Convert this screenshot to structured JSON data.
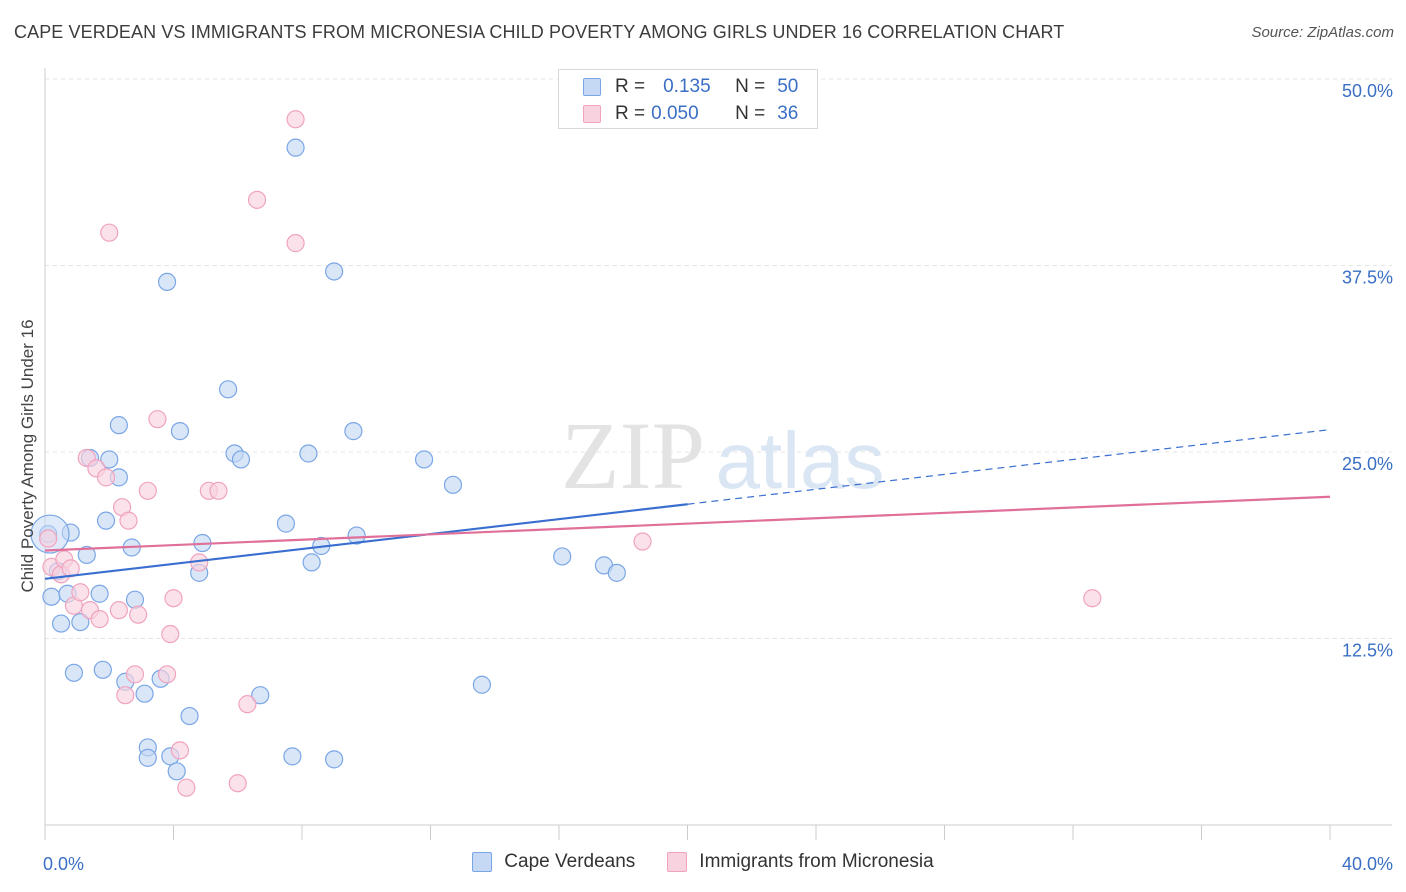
{
  "title": "CAPE VERDEAN VS IMMIGRANTS FROM MICRONESIA CHILD POVERTY AMONG GIRLS UNDER 16 CORRELATION CHART",
  "source": "Source: ZipAtlas.com",
  "watermark": {
    "zip": "ZIP",
    "atlas": "atlas"
  },
  "legend": {
    "rows": [
      {
        "r_label": "R =",
        "r_value": "0.135",
        "n_label": "N =",
        "n_value": "50"
      },
      {
        "r_label": "R =",
        "r_value": "0.050",
        "n_label": "N =",
        "n_value": "36"
      }
    ]
  },
  "chart_data": {
    "type": "scatter",
    "ylabel": "Child Poverty Among Girls Under 16",
    "xlim": [
      0,
      40
    ],
    "ylim": [
      0,
      50
    ],
    "x_tick_labels": [
      {
        "x": 0,
        "label": "0.0%"
      },
      {
        "x": 40,
        "label": "40.0%"
      }
    ],
    "y_tick_labels": [
      {
        "y": 12.5,
        "label": "12.5%"
      },
      {
        "y": 25,
        "label": "25.0%"
      },
      {
        "y": 37.5,
        "label": "37.5%"
      },
      {
        "y": 50,
        "label": "50.0%"
      }
    ],
    "x_minor_ticks": [
      0,
      4,
      8,
      12,
      16,
      20,
      24,
      28,
      32,
      36,
      40
    ],
    "grid": true,
    "legend_position": "top-center",
    "series": [
      {
        "name": "Cape Verdeans",
        "color": "#7aa6e6",
        "fill": "#c5d9f5",
        "trend": {
          "x": [
            0,
            20,
            40
          ],
          "y": [
            16.5,
            21.5,
            26.5
          ],
          "solid_until": 20
        },
        "points": [
          [
            0.1,
            19.5
          ],
          [
            0.2,
            15.3
          ],
          [
            0.4,
            17.0
          ],
          [
            0.5,
            13.5
          ],
          [
            0.7,
            15.5
          ],
          [
            0.8,
            19.6
          ],
          [
            0.9,
            10.2
          ],
          [
            1.1,
            13.6
          ],
          [
            1.3,
            18.1
          ],
          [
            1.4,
            24.6
          ],
          [
            1.7,
            15.5
          ],
          [
            1.8,
            10.4
          ],
          [
            1.9,
            20.4
          ],
          [
            2.0,
            24.5
          ],
          [
            2.3,
            23.3
          ],
          [
            2.3,
            26.8
          ],
          [
            2.5,
            9.6
          ],
          [
            2.7,
            18.6
          ],
          [
            2.8,
            15.1
          ],
          [
            3.1,
            8.8
          ],
          [
            3.2,
            5.2
          ],
          [
            3.2,
            4.5
          ],
          [
            3.6,
            9.8
          ],
          [
            3.8,
            36.4
          ],
          [
            3.9,
            4.6
          ],
          [
            4.1,
            3.6
          ],
          [
            4.2,
            26.4
          ],
          [
            4.5,
            7.3
          ],
          [
            4.8,
            16.9
          ],
          [
            4.9,
            18.9
          ],
          [
            5.7,
            29.2
          ],
          [
            5.9,
            24.9
          ],
          [
            6.1,
            24.5
          ],
          [
            6.7,
            8.7
          ],
          [
            7.5,
            20.2
          ],
          [
            7.7,
            4.6
          ],
          [
            7.8,
            45.4
          ],
          [
            8.2,
            24.9
          ],
          [
            8.3,
            17.6
          ],
          [
            8.6,
            18.7
          ],
          [
            9.0,
            4.4
          ],
          [
            9.0,
            37.1
          ],
          [
            9.6,
            26.4
          ],
          [
            9.7,
            19.4
          ],
          [
            11.8,
            24.5
          ],
          [
            12.7,
            22.8
          ],
          [
            13.6,
            9.4
          ],
          [
            16.1,
            18.0
          ],
          [
            17.4,
            17.4
          ],
          [
            17.8,
            16.9
          ]
        ]
      },
      {
        "name": "Immigrants from Micronesia",
        "color": "#f0a3bf",
        "fill": "#f9d2df",
        "trend": {
          "x": [
            0,
            40
          ],
          "y": [
            18.4,
            22.0
          ],
          "solid_until": 40
        },
        "points": [
          [
            0.1,
            19.2
          ],
          [
            0.2,
            17.3
          ],
          [
            0.5,
            16.8
          ],
          [
            0.6,
            17.8
          ],
          [
            0.8,
            17.2
          ],
          [
            0.9,
            14.7
          ],
          [
            1.1,
            15.6
          ],
          [
            1.3,
            24.6
          ],
          [
            1.4,
            14.4
          ],
          [
            1.6,
            23.9
          ],
          [
            1.7,
            13.8
          ],
          [
            1.9,
            23.3
          ],
          [
            2.0,
            39.7
          ],
          [
            2.3,
            14.4
          ],
          [
            2.4,
            21.3
          ],
          [
            2.5,
            8.7
          ],
          [
            2.6,
            20.4
          ],
          [
            2.8,
            10.1
          ],
          [
            2.9,
            14.1
          ],
          [
            3.2,
            22.4
          ],
          [
            3.5,
            27.2
          ],
          [
            3.8,
            10.1
          ],
          [
            3.9,
            12.8
          ],
          [
            4.0,
            15.2
          ],
          [
            4.2,
            5.0
          ],
          [
            4.4,
            2.5
          ],
          [
            4.8,
            17.6
          ],
          [
            5.1,
            22.4
          ],
          [
            5.4,
            22.4
          ],
          [
            6.0,
            2.8
          ],
          [
            6.3,
            8.1
          ],
          [
            6.6,
            41.9
          ],
          [
            7.8,
            39.0
          ],
          [
            7.8,
            47.3
          ],
          [
            18.6,
            19.0
          ],
          [
            32.6,
            15.2
          ]
        ]
      }
    ]
  }
}
